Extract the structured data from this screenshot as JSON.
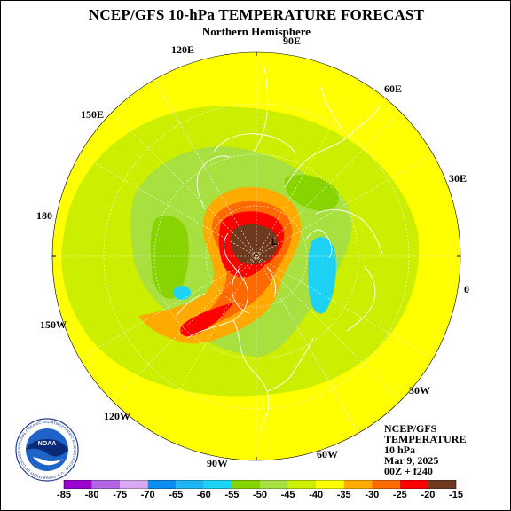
{
  "header": {
    "title": "NCEP/GFS 10-hPa TEMPERATURE FORECAST",
    "subtitle": "Northern Hemisphere"
  },
  "longitude_labels": {
    "lon_90e": "90E",
    "lon_120e": "120E",
    "lon_60e": "60E",
    "lon_150e": "150E",
    "lon_30e": "30E",
    "lon_180": "180",
    "lon_0": "0",
    "lon_150w": "150W",
    "lon_30w": "30W",
    "lon_120w": "120W",
    "lon_90w": "90W",
    "lon_60w": "60W"
  },
  "map_marks": {
    "low_center": "L"
  },
  "info": {
    "model": "NCEP/GFS",
    "field": "TEMPERATURE",
    "level": "10 hPa",
    "date": "Mar 9, 2025",
    "run": "00Z + f240"
  },
  "logo": {
    "text": "NOAA",
    "ring_text": "NATIONAL OCEANIC AND ATMOSPHERIC ADMINISTRATION · U.S. DEPARTMENT OF COMMERCE"
  },
  "colorbar": {
    "labels": [
      "-85",
      "-80",
      "-75",
      "-70",
      "-65",
      "-60",
      "-55",
      "-50",
      "-45",
      "-40",
      "-35",
      "-30",
      "-25",
      "-20",
      "-15"
    ],
    "colors": [
      "#9b00d0",
      "#b266e6",
      "#d8a8f0",
      "#0a8cf0",
      "#1eb4f5",
      "#1ed2f5",
      "#88d400",
      "#a8e040",
      "#ccee00",
      "#ffff00",
      "#ffaa00",
      "#ff6a00",
      "#ff0000",
      "#6e3a1e"
    ]
  },
  "colors": {
    "background_field": "#ffff00",
    "outline": "#ffffff"
  }
}
